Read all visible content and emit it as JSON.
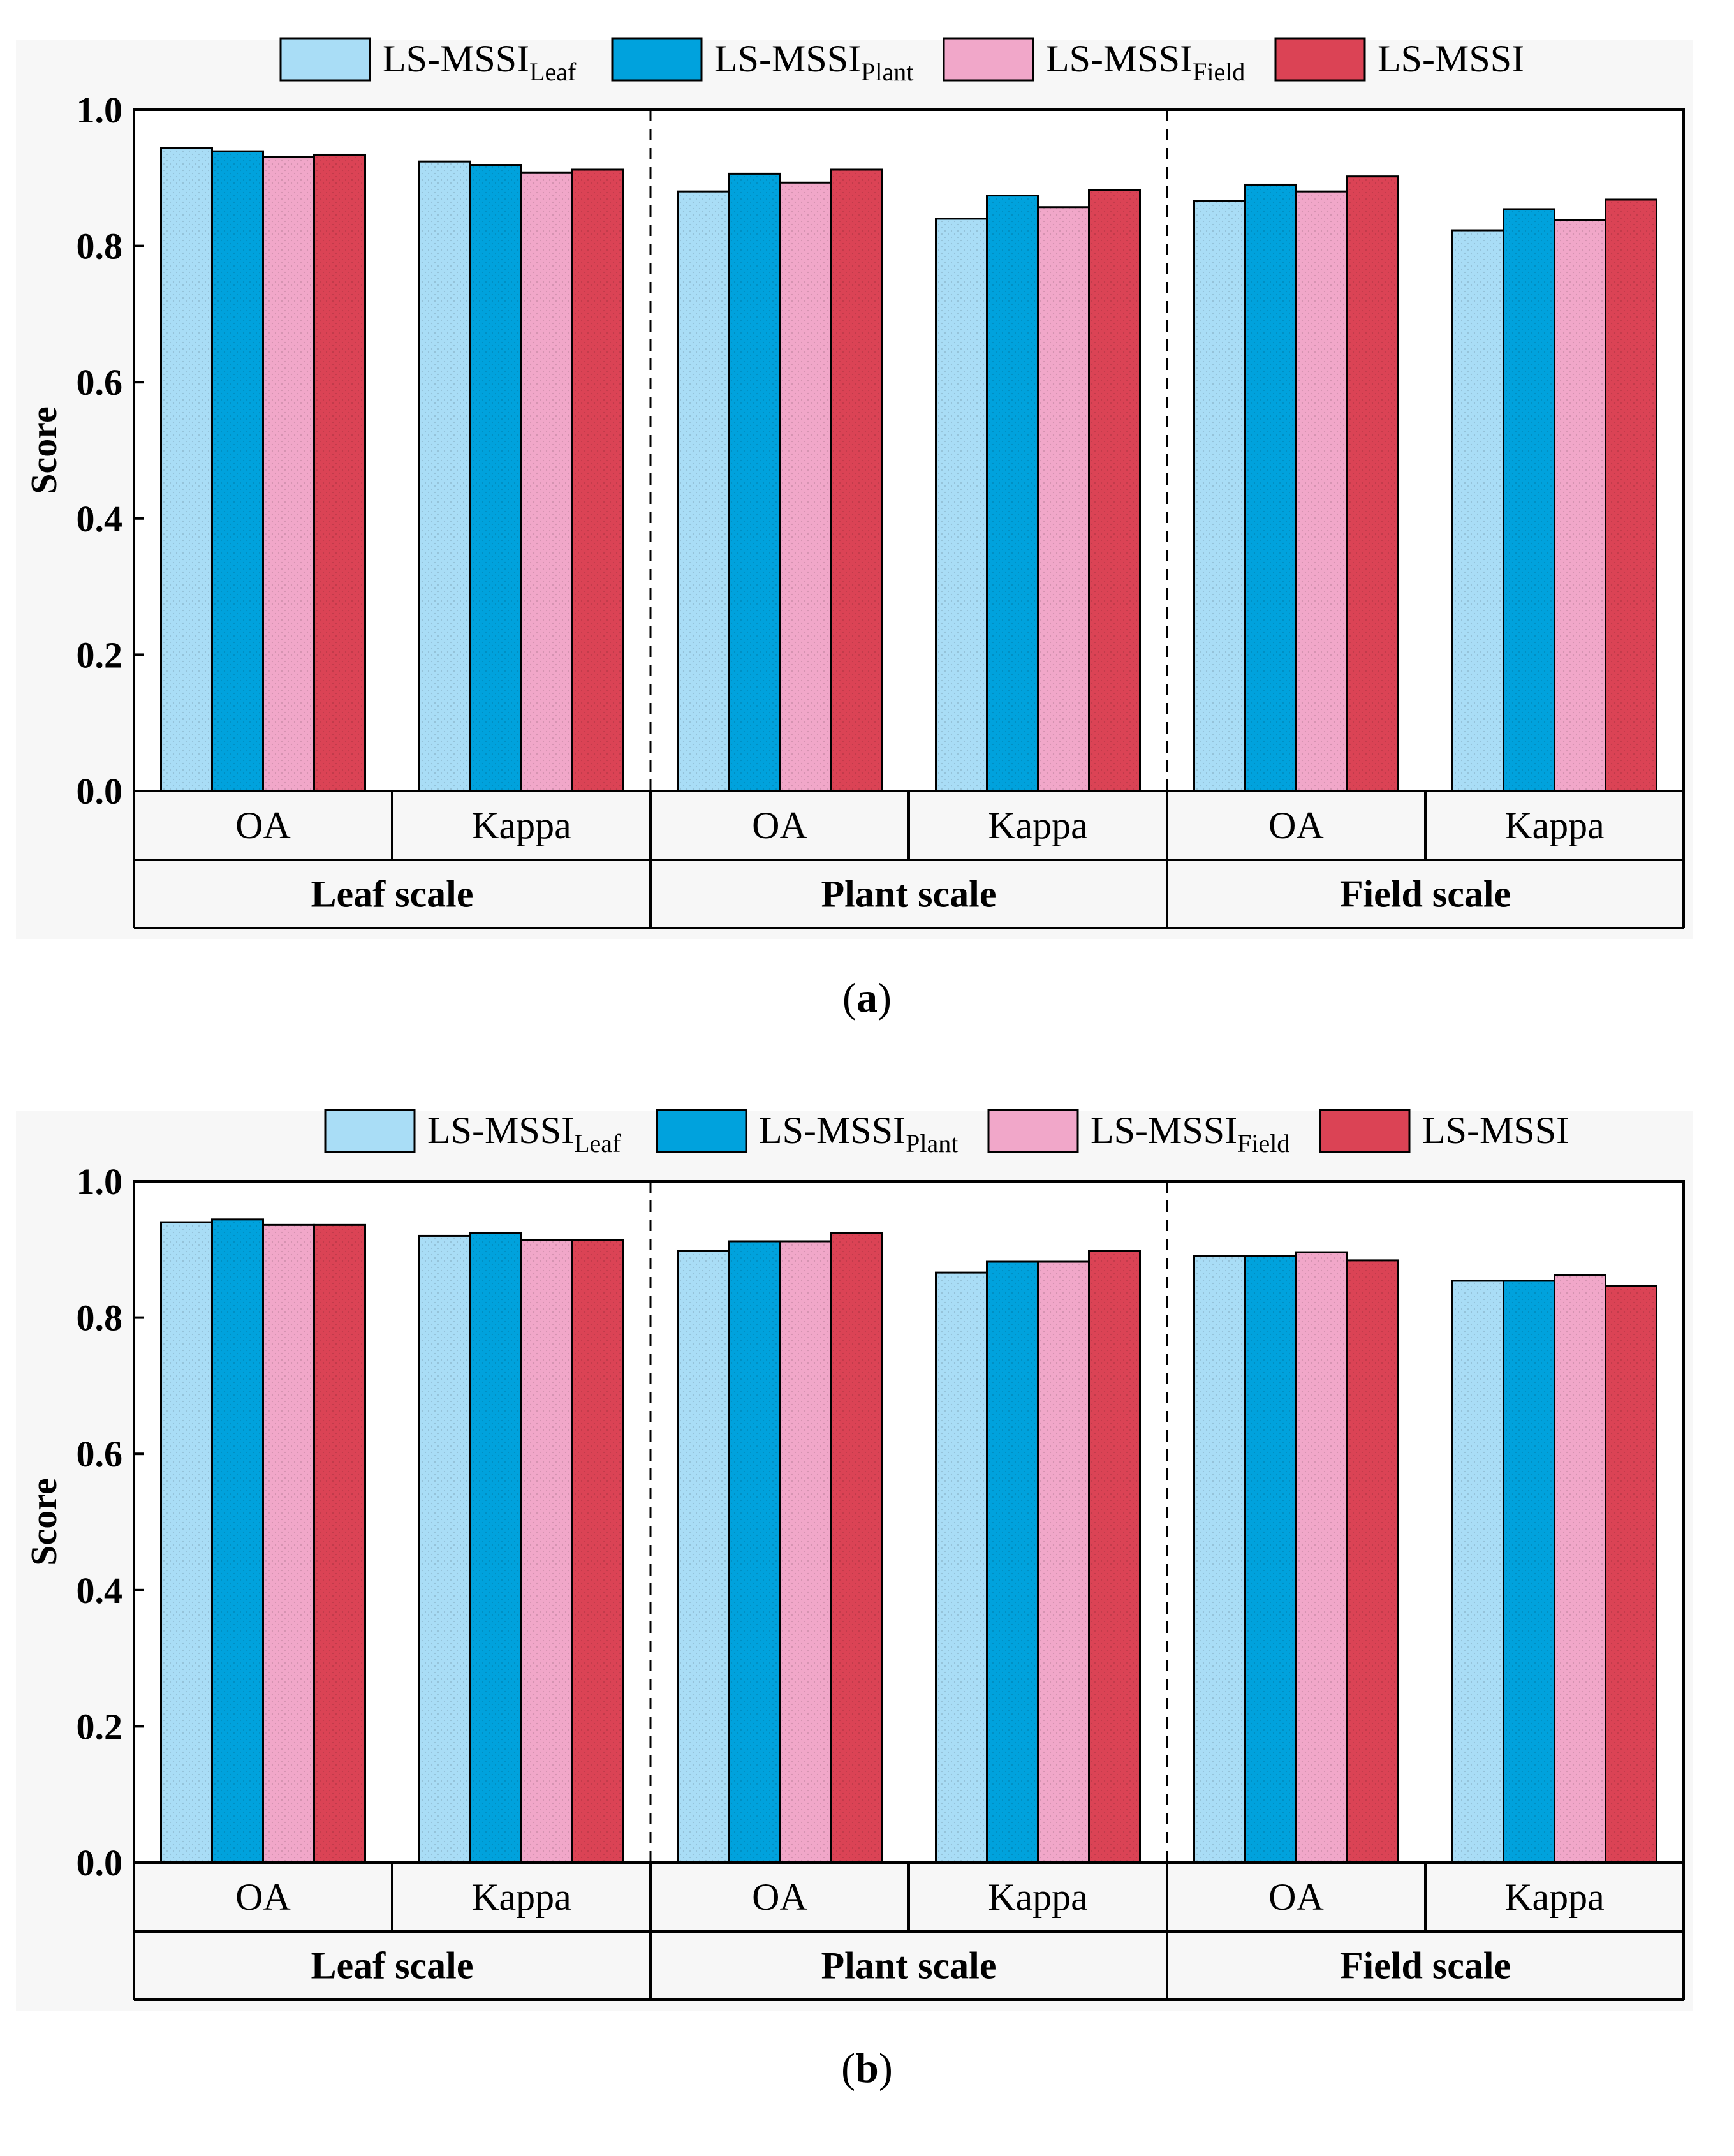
{
  "chart_data": [
    {
      "type": "bar",
      "panel_label": "a",
      "ylabel": "Score",
      "ylim": [
        0,
        1
      ],
      "yticks": [
        "0.0",
        "0.2",
        "0.4",
        "0.6",
        "0.8",
        "1.0"
      ],
      "groups": [
        {
          "label": "Leaf scale",
          "metrics": [
            "OA",
            "Kappa"
          ]
        },
        {
          "label": "Plant scale",
          "metrics": [
            "OA",
            "Kappa"
          ]
        },
        {
          "label": "Field scale",
          "metrics": [
            "OA",
            "Kappa"
          ]
        }
      ],
      "categories": [
        "Leaf OA",
        "Leaf Kappa",
        "Plant OA",
        "Plant Kappa",
        "Field OA",
        "Field Kappa"
      ],
      "legend_position": "top-right",
      "series": [
        {
          "name": "LS-MSSI",
          "sub": "Leaf",
          "color": "#a9ddf6",
          "values": [
            0.944,
            0.924,
            0.88,
            0.84,
            0.866,
            0.823
          ]
        },
        {
          "name": "LS-MSSI",
          "sub": "Plant",
          "color": "#00a2dd",
          "values": [
            0.939,
            0.919,
            0.906,
            0.874,
            0.89,
            0.854
          ]
        },
        {
          "name": "LS-MSSI",
          "sub": "Field",
          "color": "#f1a7c9",
          "values": [
            0.931,
            0.908,
            0.893,
            0.857,
            0.88,
            0.838
          ]
        },
        {
          "name": "LS-MSSI",
          "sub": "",
          "color": "#db4355",
          "values": [
            0.934,
            0.912,
            0.912,
            0.882,
            0.902,
            0.868
          ]
        }
      ]
    },
    {
      "type": "bar",
      "panel_label": "b",
      "ylabel": "Score",
      "ylim": [
        0,
        1
      ],
      "yticks": [
        "0.0",
        "0.2",
        "0.4",
        "0.6",
        "0.8",
        "1.0"
      ],
      "groups": [
        {
          "label": "Leaf scale",
          "metrics": [
            "OA",
            "Kappa"
          ]
        },
        {
          "label": "Plant scale",
          "metrics": [
            "OA",
            "Kappa"
          ]
        },
        {
          "label": "Field scale",
          "metrics": [
            "OA",
            "Kappa"
          ]
        }
      ],
      "categories": [
        "Leaf OA",
        "Leaf Kappa",
        "Plant OA",
        "Plant Kappa",
        "Field OA",
        "Field Kappa"
      ],
      "legend_position": "top-right",
      "series": [
        {
          "name": "LS-MSSI",
          "sub": "Leaf",
          "color": "#a9ddf6",
          "values": [
            0.94,
            0.92,
            0.898,
            0.866,
            0.89,
            0.854
          ]
        },
        {
          "name": "LS-MSSI",
          "sub": "Plant",
          "color": "#00a2dd",
          "values": [
            0.944,
            0.924,
            0.912,
            0.882,
            0.89,
            0.854
          ]
        },
        {
          "name": "LS-MSSI",
          "sub": "Field",
          "color": "#f1a7c9",
          "values": [
            0.936,
            0.914,
            0.912,
            0.882,
            0.896,
            0.862
          ]
        },
        {
          "name": "LS-MSSI",
          "sub": "",
          "color": "#db4355",
          "values": [
            0.936,
            0.914,
            0.924,
            0.898,
            0.884,
            0.846
          ]
        }
      ]
    }
  ]
}
